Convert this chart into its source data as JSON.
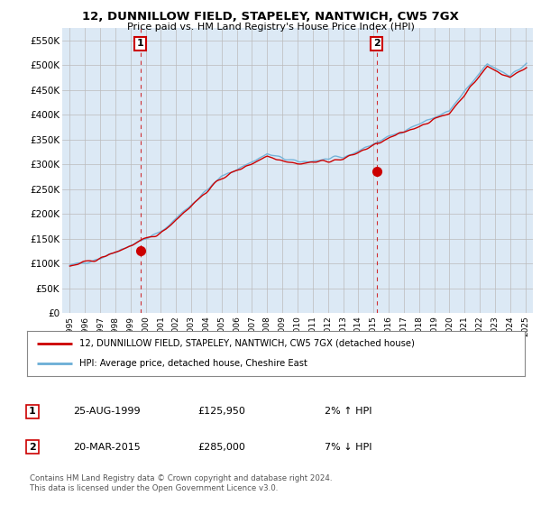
{
  "title": "12, DUNNILLOW FIELD, STAPELEY, NANTWICH, CW5 7GX",
  "subtitle": "Price paid vs. HM Land Registry's House Price Index (HPI)",
  "ylabel_ticks": [
    "£0",
    "£50K",
    "£100K",
    "£150K",
    "£200K",
    "£250K",
    "£300K",
    "£350K",
    "£400K",
    "£450K",
    "£500K",
    "£550K"
  ],
  "ylabel_values": [
    0,
    50000,
    100000,
    150000,
    200000,
    250000,
    300000,
    350000,
    400000,
    450000,
    500000,
    550000
  ],
  "xlim_start": 1994.5,
  "xlim_end": 2025.5,
  "ylim_min": 0,
  "ylim_max": 575000,
  "hpi_color": "#6aaed6",
  "price_color": "#CC0000",
  "chart_bg": "#dce9f5",
  "transaction1": {
    "date": "25-AUG-1999",
    "price": 125950,
    "pct": "2%",
    "dir": "↑",
    "year": 1999.65
  },
  "transaction2": {
    "date": "20-MAR-2015",
    "price": 285000,
    "pct": "7%",
    "dir": "↓",
    "year": 2015.21
  },
  "legend_line1": "12, DUNNILLOW FIELD, STAPELEY, NANTWICH, CW5 7GX (detached house)",
  "legend_line2": "HPI: Average price, detached house, Cheshire East",
  "footer1": "Contains HM Land Registry data © Crown copyright and database right 2024.",
  "footer2": "This data is licensed under the Open Government Licence v3.0.",
  "background_color": "#ffffff",
  "grid_color": "#bbbbbb"
}
